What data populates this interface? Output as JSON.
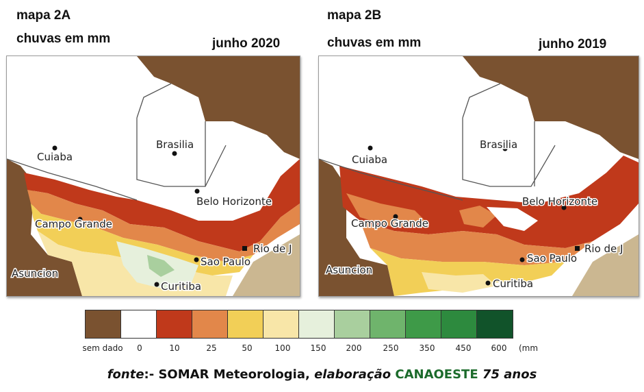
{
  "map_a": {
    "title": "mapa 2A",
    "subtitle": "chuvas em mm",
    "period": "junho 2020",
    "cities": [
      "Cuiaba",
      "Brasilia",
      "Belo Horizonte",
      "Campo Grande",
      "Rio de J",
      "Sao Paulo",
      "Asuncion",
      "Curitiba"
    ]
  },
  "map_b": {
    "title": "mapa 2B",
    "subtitle": "chuvas em mm",
    "period": "junho 2019",
    "cities": [
      "Cuiaba",
      "Brasilia",
      "Belo Horizonte",
      "Campo Grande",
      "Rio de J",
      "Sao Paulo",
      "Asuncion",
      "Curitiba"
    ]
  },
  "legend": {
    "labels": [
      "sem dado",
      "0",
      "10",
      "25",
      "50",
      "100",
      "150",
      "200",
      "250",
      "350",
      "450",
      "600"
    ],
    "unit": "(mm",
    "colors": [
      "#7a5230",
      "#ffffff",
      "#c0391b",
      "#e2874a",
      "#f2cf57",
      "#f8e6a8",
      "#e6f0dc",
      "#a9cf9e",
      "#6fb46c",
      "#3e9a48",
      "#2d8a3e",
      "#11532a"
    ]
  },
  "source": {
    "prefix": "fonte",
    "middle": ":- SOMAR Meteorologia, ",
    "italic": "elaboração",
    "brand": "CANAOESTE",
    "suffix": "75 anos"
  }
}
